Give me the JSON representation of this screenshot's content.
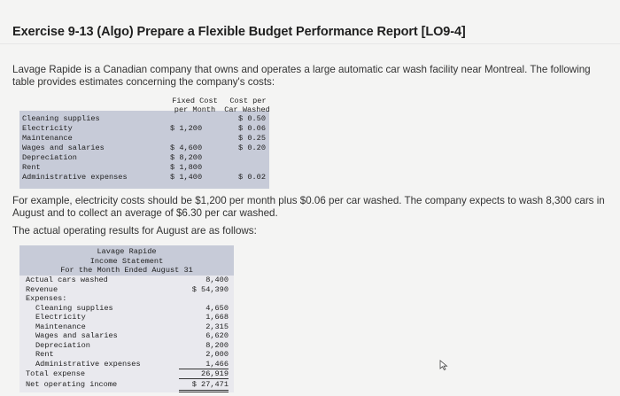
{
  "title": "Exercise 9-13 (Algo) Prepare a Flexible Budget Performance Report [LO9-4]",
  "intro": "Lavage Rapide is a Canadian company that owns and operates a large automatic car wash facility near Montreal. The following table provides estimates concerning the company's costs:",
  "cost_table": {
    "header_fixed_1": "Fixed Cost",
    "header_fixed_2": "per Month",
    "header_var_1": "Cost per",
    "header_var_2": "Car Washed",
    "rows": [
      {
        "label": "Cleaning supplies",
        "fixed": "",
        "var": "$ 0.50"
      },
      {
        "label": "Electricity",
        "fixed": "$ 1,200",
        "var": "$ 0.06"
      },
      {
        "label": "Maintenance",
        "fixed": "",
        "var": "$ 0.25"
      },
      {
        "label": "Wages and salaries",
        "fixed": "$ 4,600",
        "var": "$ 0.20"
      },
      {
        "label": "Depreciation",
        "fixed": "$ 8,200",
        "var": ""
      },
      {
        "label": "Rent",
        "fixed": "$ 1,800",
        "var": ""
      },
      {
        "label": "Administrative expenses",
        "fixed": "$ 1,400",
        "var": "$ 0.02"
      }
    ]
  },
  "example": "For example, electricity costs should be $1,200 per month plus $0.06 per car washed. The company expects to wash 8,300 cars in August and to collect an average of $6.30 per car washed.",
  "actual_intro": "The actual operating results for August are as follows:",
  "income_statement": {
    "company": "Lavage Rapide",
    "statement": "Income Statement",
    "period": "For the Month Ended August 31",
    "cars_label": "Actual cars washed",
    "cars_value": "8,400",
    "revenue_label": "Revenue",
    "revenue_value": "$ 54,390",
    "expenses_label": "Expenses:",
    "expenses": [
      {
        "label": "Cleaning supplies",
        "value": "4,650"
      },
      {
        "label": "Electricity",
        "value": "1,668"
      },
      {
        "label": "Maintenance",
        "value": "2,315"
      },
      {
        "label": "Wages and salaries",
        "value": "6,620"
      },
      {
        "label": "Depreciation",
        "value": "8,200"
      },
      {
        "label": "Rent",
        "value": "2,000"
      },
      {
        "label": "Administrative expenses",
        "value": "1,466"
      }
    ],
    "total_label": "Total expense",
    "total_value": "26,919",
    "net_label": "Net operating income",
    "net_value": "$ 27,471"
  }
}
